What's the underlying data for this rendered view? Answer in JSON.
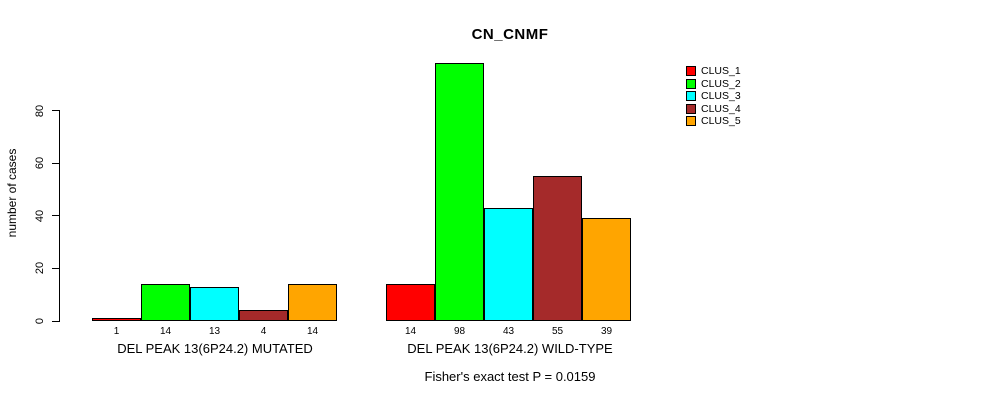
{
  "chart_data": {
    "type": "bar",
    "title": "CN_CNMF",
    "ylabel": "number of cases",
    "xlabel": "",
    "y_ticks": [
      0,
      20,
      40,
      60,
      80
    ],
    "ylim": [
      0,
      100
    ],
    "grid": false,
    "legend_position": "top-right",
    "show_bar_value_labels": true,
    "groups": [
      "DEL PEAK 13(6P24.2) MUTATED",
      "DEL PEAK 13(6P24.2) WILD-TYPE"
    ],
    "series": [
      {
        "name": "CLUS_1",
        "color": "#FF0000",
        "values": [
          1,
          14
        ]
      },
      {
        "name": "CLUS_2",
        "color": "#00FF00",
        "values": [
          14,
          98
        ]
      },
      {
        "name": "CLUS_3",
        "color": "#00FFFF",
        "values": [
          13,
          43
        ]
      },
      {
        "name": "CLUS_4",
        "color": "#A52A2A",
        "values": [
          4,
          55
        ]
      },
      {
        "name": "CLUS_5",
        "color": "#FFA500",
        "values": [
          14,
          39
        ]
      }
    ],
    "annotation": "Fisher's exact test P = 0.0159"
  },
  "colors": {
    "background": "#FFFFFF",
    "axis": "#000000",
    "bar_border": "#000000"
  }
}
